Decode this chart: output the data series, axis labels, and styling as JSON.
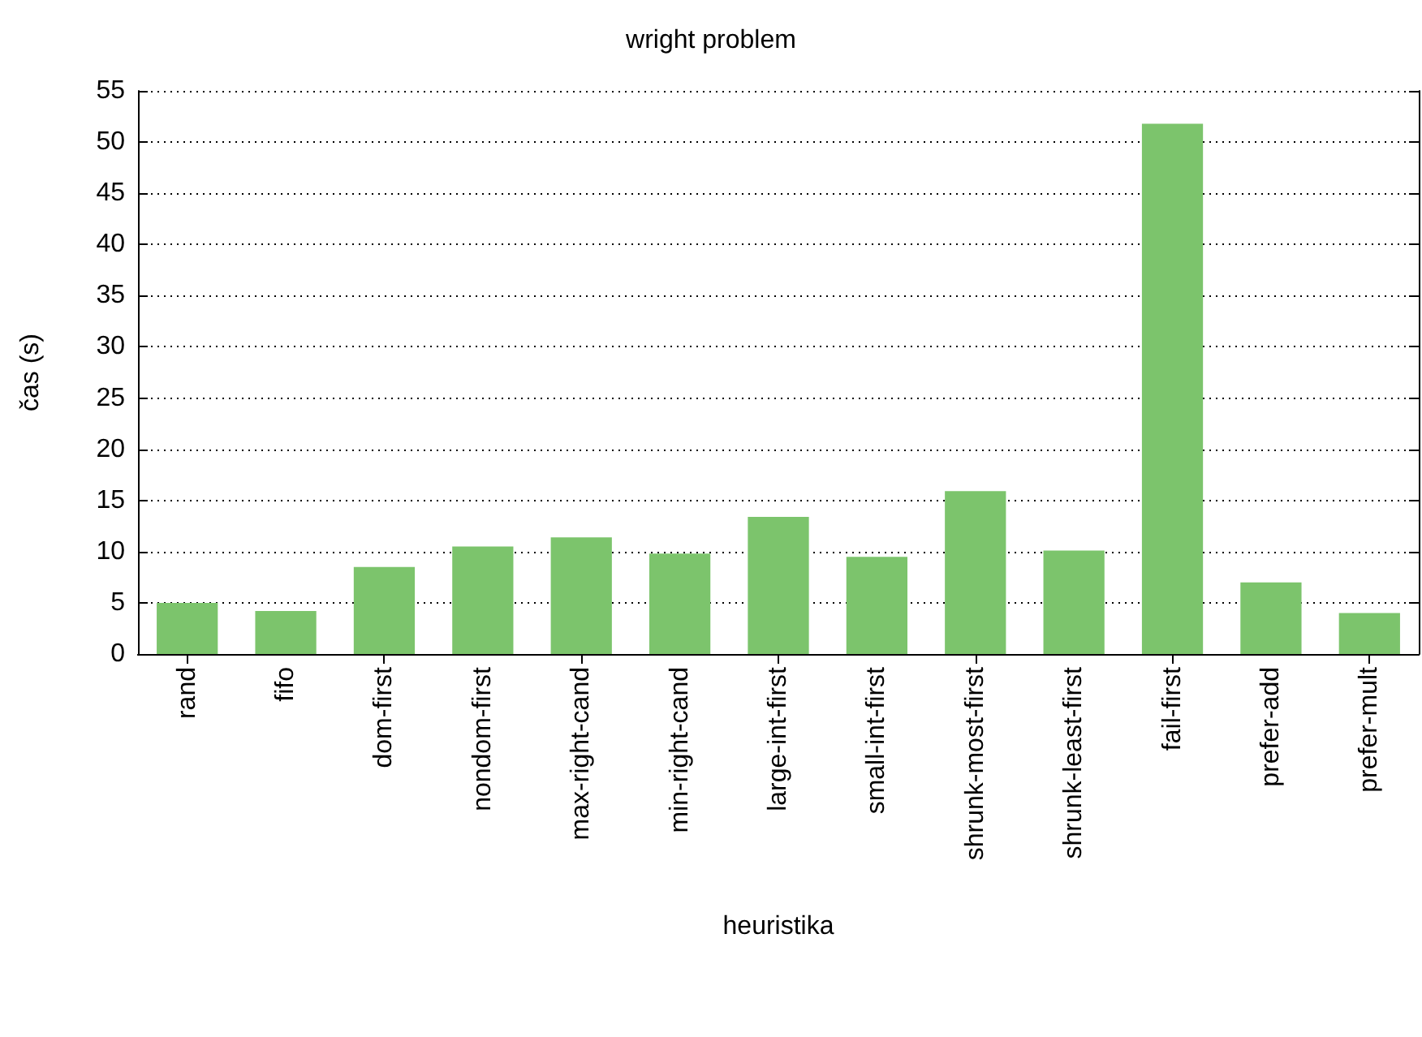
{
  "chart_data": {
    "type": "bar",
    "title": "wright problem",
    "xlabel": "heuristika",
    "ylabel": "čas (s)",
    "categories": [
      "rand",
      "fifo",
      "dom-first",
      "nondom-first",
      "max-right-cand",
      "min-right-cand",
      "large-int-first",
      "small-int-first",
      "shrunk-most-first",
      "shrunk-least-first",
      "fail-first",
      "prefer-add",
      "prefer-mult"
    ],
    "values": [
      5.0,
      4.2,
      8.5,
      10.5,
      11.4,
      9.8,
      13.4,
      9.5,
      15.9,
      10.1,
      51.8,
      7.0,
      4.0
    ],
    "color": "#7cc46c",
    "ylim": [
      0,
      55
    ],
    "yticks": [
      0,
      5,
      10,
      15,
      20,
      25,
      30,
      35,
      40,
      45,
      50,
      55
    ],
    "grid": "y"
  }
}
